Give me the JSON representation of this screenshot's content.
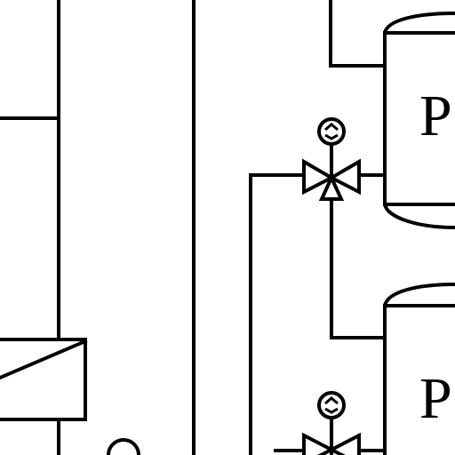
{
  "diagram": {
    "tanks": [
      {
        "label": "P"
      },
      {
        "label": "P"
      }
    ],
    "valves": [
      {
        "kind": "three-way-valve",
        "actuator": "motor-actuator-icon"
      },
      {
        "kind": "three-way-valve",
        "actuator": "motor-actuator-icon"
      }
    ],
    "components": [
      {
        "kind": "heat-exchanger-box"
      },
      {
        "kind": "pump-circle-partial"
      }
    ],
    "colors": {
      "line": "#000000",
      "background": "#ffffff"
    }
  }
}
